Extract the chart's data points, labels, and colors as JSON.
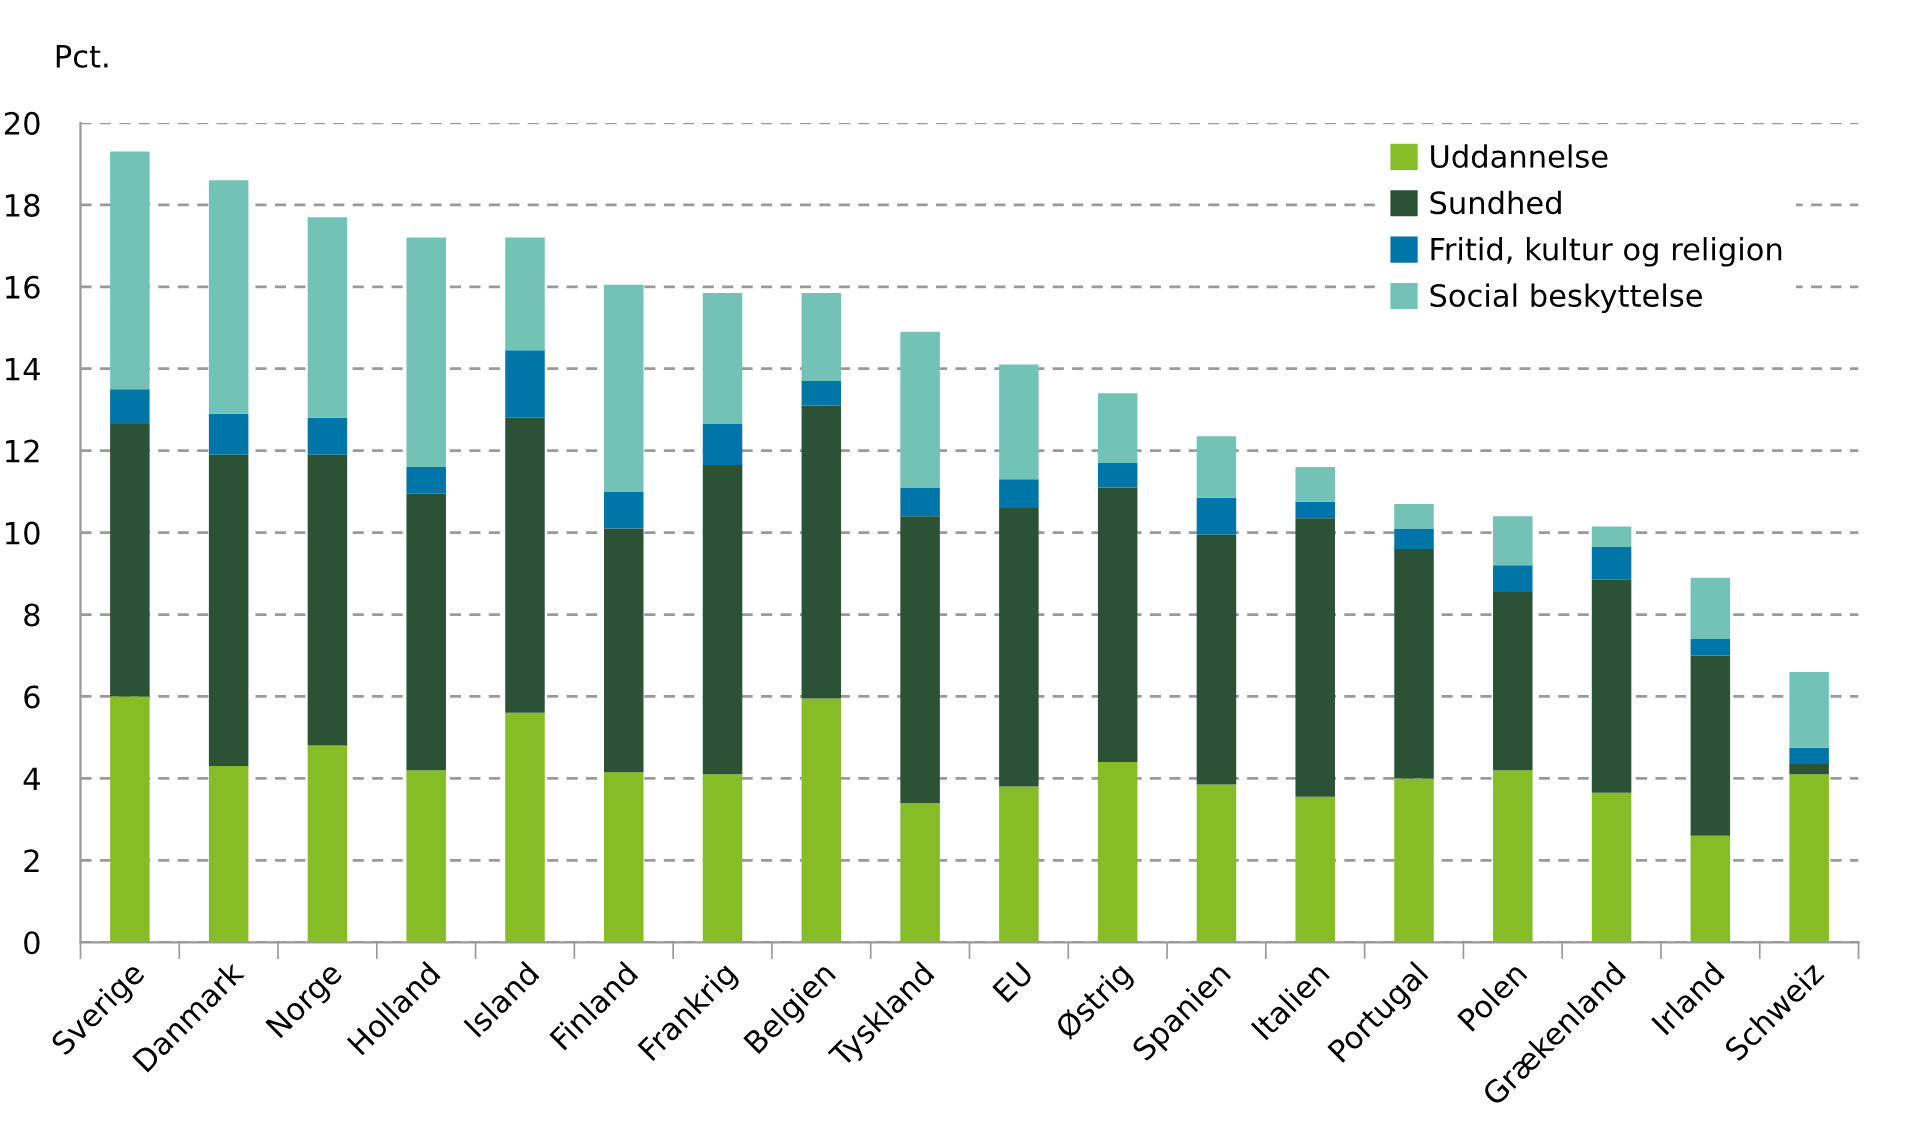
{
  "chart_data": {
    "type": "bar",
    "stacked": true,
    "ylabel": "Pct.",
    "categories": [
      "Sverige",
      "Danmark",
      "Norge",
      "Holland",
      "Island",
      "Finland",
      "Frankrig",
      "Belgien",
      "Tyskland",
      "EU",
      "Østrig",
      "Spanien",
      "Italien",
      "Portugal",
      "Polen",
      "Grækenland",
      "Irland",
      "Schweiz"
    ],
    "series": [
      {
        "name": "Uddannelse",
        "color": "#86bc25",
        "values": [
          6.0,
          4.3,
          4.8,
          4.2,
          5.6,
          4.15,
          4.1,
          5.95,
          3.4,
          3.8,
          4.4,
          3.85,
          3.55,
          4.0,
          4.2,
          3.65,
          2.6,
          4.1
        ]
      },
      {
        "name": "Sundhed",
        "color": "#2b5234",
        "values": [
          6.65,
          7.6,
          7.1,
          6.75,
          7.2,
          5.95,
          7.55,
          7.15,
          7.0,
          6.8,
          6.7,
          6.1,
          6.8,
          5.6,
          4.35,
          5.2,
          4.4,
          0.25
        ]
      },
      {
        "name": "Fritid, kultur og religion",
        "color": "#0075a8",
        "values": [
          0.85,
          1.0,
          0.9,
          0.65,
          1.65,
          0.9,
          1.0,
          0.6,
          0.7,
          0.7,
          0.6,
          0.9,
          0.4,
          0.5,
          0.65,
          0.8,
          0.4,
          0.4
        ]
      },
      {
        "name": "Social beskyttelse",
        "color": "#72c3b5",
        "values": [
          5.8,
          5.7,
          4.9,
          5.6,
          2.75,
          5.05,
          3.2,
          2.15,
          3.8,
          2.8,
          1.7,
          1.5,
          0.85,
          0.6,
          1.2,
          0.5,
          1.5,
          1.85
        ]
      }
    ],
    "ylim": [
      0,
      20
    ],
    "yticks": [
      0,
      2,
      4,
      6,
      8,
      10,
      12,
      14,
      16,
      18,
      20
    ],
    "grid": "y",
    "legend": "top right"
  }
}
